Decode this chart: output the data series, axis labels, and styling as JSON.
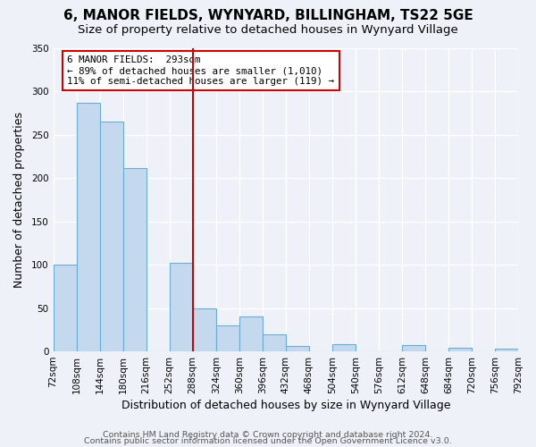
{
  "title": "6, MANOR FIELDS, WYNYARD, BILLINGHAM, TS22 5GE",
  "subtitle": "Size of property relative to detached houses in Wynyard Village",
  "xlabel": "Distribution of detached houses by size in Wynyard Village",
  "ylabel": "Number of detached properties",
  "bin_edges": [
    72,
    108,
    144,
    180,
    216,
    252,
    288,
    324,
    360,
    396,
    432,
    468,
    504,
    540,
    576,
    612,
    648,
    684,
    720,
    756,
    792
  ],
  "bin_counts": [
    100,
    287,
    265,
    212,
    0,
    102,
    50,
    30,
    40,
    20,
    6,
    0,
    8,
    0,
    0,
    7,
    0,
    4,
    0,
    3
  ],
  "bar_color": "#c5d9ee",
  "bar_edge_color": "#6aaad4",
  "vline_x": 288,
  "vline_color": "#cc0000",
  "annotation_title": "6 MANOR FIELDS:  293sqm",
  "annotation_line1": "← 89% of detached houses are smaller (1,010)",
  "annotation_line2": "11% of semi-detached houses are larger (119) →",
  "annotation_box_color": "#cc0000",
  "ylim": [
    0,
    350
  ],
  "yticks": [
    0,
    50,
    100,
    150,
    200,
    250,
    300,
    350
  ],
  "xtick_labels": [
    "72sqm",
    "108sqm",
    "144sqm",
    "180sqm",
    "216sqm",
    "252sqm",
    "288sqm",
    "324sqm",
    "360sqm",
    "396sqm",
    "432sqm",
    "468sqm",
    "504sqm",
    "540sqm",
    "576sqm",
    "612sqm",
    "648sqm",
    "684sqm",
    "720sqm",
    "756sqm",
    "792sqm"
  ],
  "footer1": "Contains HM Land Registry data © Crown copyright and database right 2024.",
  "footer2": "Contains public sector information licensed under the Open Government Licence v3.0.",
  "bg_color": "#eef2f8",
  "plot_bg_color": "#eef2f8",
  "title_fontsize": 11,
  "subtitle_fontsize": 9.5,
  "axis_label_fontsize": 9,
  "tick_fontsize": 7.5,
  "footer_fontsize": 6.8
}
